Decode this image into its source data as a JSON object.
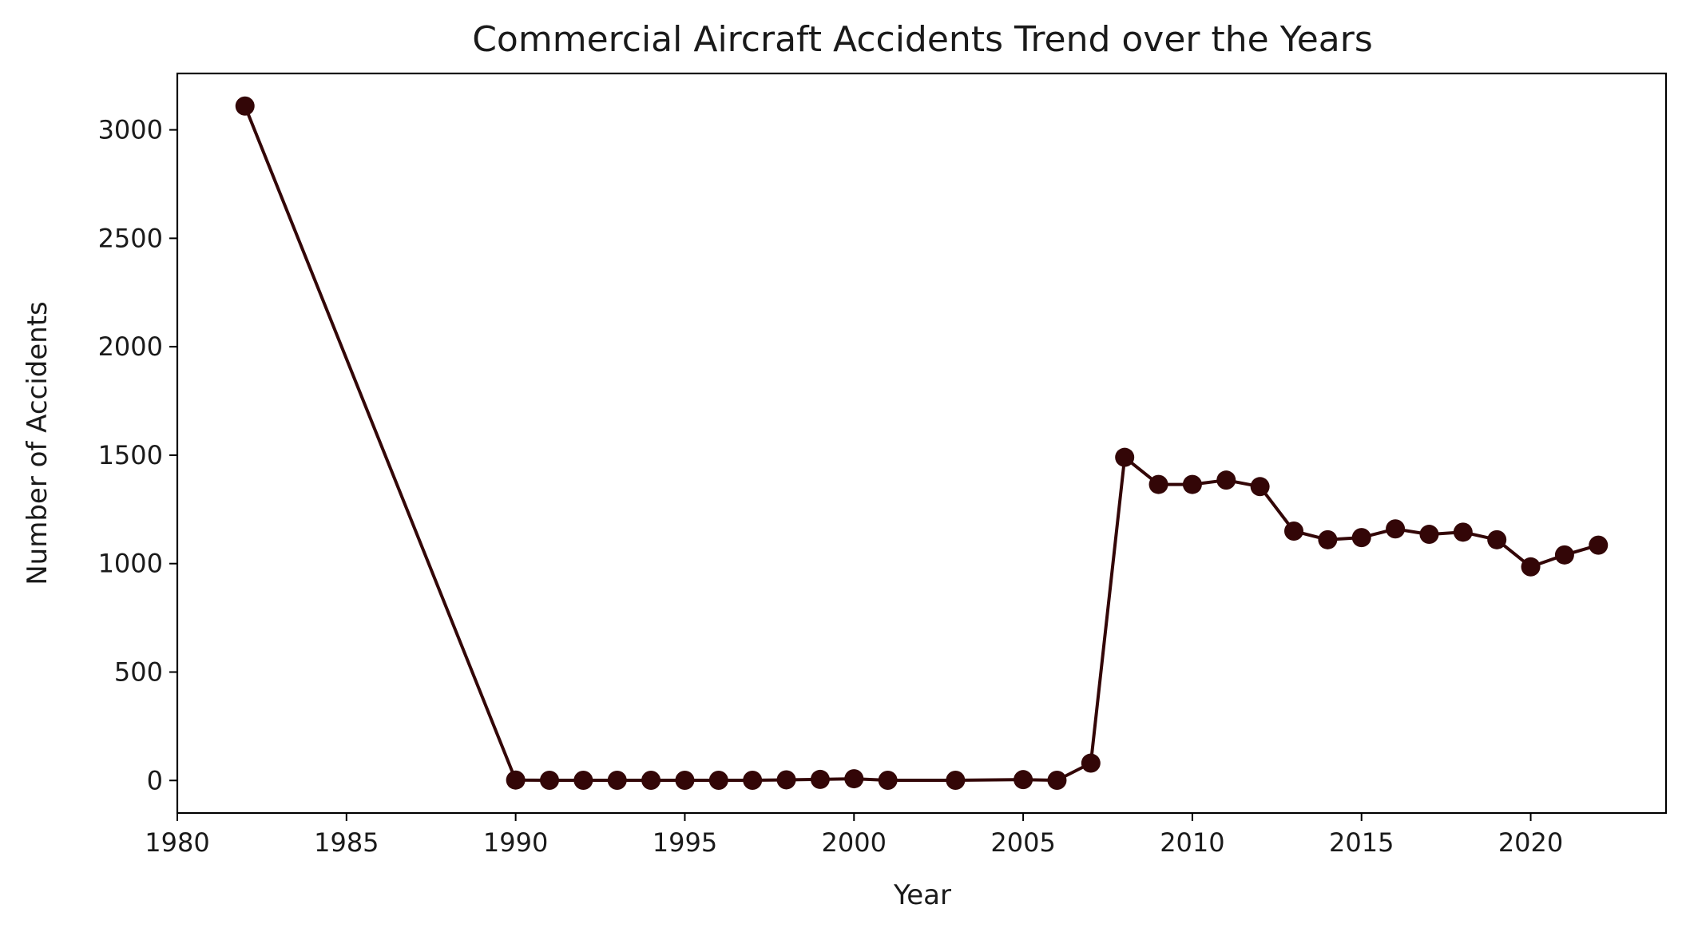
{
  "chart_data": {
    "type": "line",
    "title": "Commercial Aircraft Accidents Trend over the Years",
    "xlabel": "Year",
    "ylabel": "Number of Accidents",
    "xlim": [
      1980,
      2024
    ],
    "ylim": [
      -150,
      3260
    ],
    "x_ticks": [
      1980,
      1985,
      1990,
      1995,
      2000,
      2005,
      2010,
      2015,
      2020
    ],
    "y_ticks": [
      0,
      500,
      1000,
      1500,
      2000,
      2500,
      3000
    ],
    "grid": false,
    "line_color": "#330607",
    "marker_color": "#330607",
    "series": [
      {
        "x": [
          1982,
          1990,
          1991,
          1992,
          1993,
          1994,
          1995,
          1996,
          1997,
          1998,
          1999,
          2000,
          2001,
          2003,
          2005,
          2006,
          2007,
          2008,
          2009,
          2010,
          2011,
          2012,
          2013,
          2014,
          2015,
          2016,
          2017,
          2018,
          2019,
          2020,
          2021,
          2022
        ],
        "values": [
          3110,
          2,
          1,
          1,
          1,
          1,
          1,
          1,
          1,
          3,
          5,
          8,
          1,
          1,
          4,
          1,
          80,
          1490,
          1365,
          1365,
          1385,
          1355,
          1150,
          1110,
          1120,
          1160,
          1135,
          1145,
          1110,
          985,
          1040,
          1085
        ]
      }
    ]
  }
}
